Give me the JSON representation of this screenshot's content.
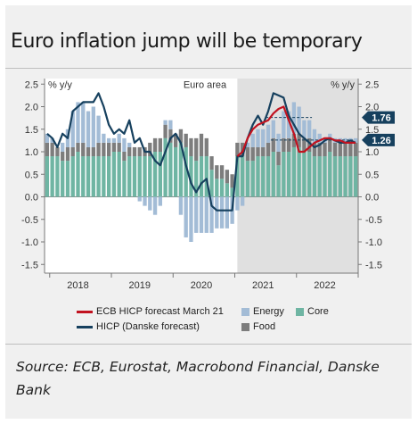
{
  "title": "Euro inflation jump will be temporary",
  "source": "Source: ECB, Eurostat, Macrobond Financial, Danske Bank",
  "chart_data": {
    "type": "bar",
    "region_label": "Euro area",
    "left_unit": "% y/y",
    "right_unit": "% y/y",
    "ylim": [
      -1.6,
      2.6
    ],
    "y_ticks": [
      "2.5",
      "2.0",
      "1.5",
      "1.0",
      "0.5",
      "0.0",
      "-0.5",
      "-1.0",
      "-1.5"
    ],
    "y_tick_values": [
      2.5,
      2.0,
      1.5,
      1.0,
      0.5,
      0.0,
      -0.5,
      -1.0,
      -1.5
    ],
    "year_labels": [
      "2018",
      "2019",
      "2020",
      "2021",
      "2022"
    ],
    "year_label_months": [
      6,
      18,
      30,
      42,
      54
    ],
    "forecast_start_month": 37.5,
    "months_start": "2017-12",
    "n_months": 61,
    "series": [
      {
        "name": "Core",
        "color": "#6fb5a3",
        "values": [
          0.9,
          0.9,
          0.9,
          0.8,
          0.8,
          0.9,
          1.0,
          0.9,
          0.9,
          0.9,
          0.9,
          0.9,
          0.9,
          1.0,
          1.0,
          0.8,
          0.9,
          0.9,
          0.9,
          0.9,
          0.9,
          1.0,
          1.0,
          1.3,
          1.2,
          1.1,
          1.2,
          1.1,
          0.9,
          0.8,
          0.9,
          0.9,
          0.6,
          0.4,
          0.4,
          0.3,
          0.2,
          0.9,
          0.9,
          0.8,
          0.8,
          0.9,
          0.9,
          0.9,
          1.0,
          0.7,
          1.0,
          1.0,
          1.1,
          1.1,
          1.0,
          1.0,
          0.9,
          0.9,
          0.9,
          1.0,
          0.9,
          0.9,
          0.9,
          0.9,
          0.9
        ]
      },
      {
        "name": "Food",
        "color": "#7d7d7d",
        "values": [
          0.3,
          0.3,
          0.2,
          0.2,
          0.3,
          0.2,
          0.2,
          0.3,
          0.2,
          0.2,
          0.3,
          0.3,
          0.3,
          0.2,
          0.2,
          0.2,
          0.2,
          0.2,
          0.2,
          0.2,
          0.3,
          0.3,
          0.3,
          0.3,
          0.3,
          0.3,
          0.3,
          0.3,
          0.4,
          0.5,
          0.5,
          0.4,
          0.3,
          0.3,
          0.3,
          0.3,
          0.3,
          0.3,
          0.3,
          0.3,
          0.3,
          0.2,
          0.2,
          0.3,
          0.3,
          0.3,
          0.3,
          0.3,
          0.3,
          0.3,
          0.3,
          0.3,
          0.3,
          0.3,
          0.3,
          0.3,
          0.3,
          0.3,
          0.3,
          0.3,
          0.3
        ]
      },
      {
        "name": "Energy",
        "color": "#a3bcd6",
        "values": [
          0.2,
          0.1,
          0.0,
          0.2,
          0.4,
          0.8,
          0.9,
          0.9,
          0.8,
          0.9,
          0.6,
          0.2,
          0.1,
          0.1,
          0.2,
          0.3,
          0.1,
          0.0,
          -0.1,
          -0.2,
          -0.3,
          -0.4,
          -0.2,
          0.1,
          0.2,
          0.0,
          -0.4,
          -0.9,
          -1.0,
          -0.8,
          -0.8,
          -0.8,
          -0.8,
          -0.7,
          -0.7,
          -0.7,
          -0.6,
          -0.3,
          -0.2,
          0.1,
          0.3,
          0.4,
          0.4,
          0.4,
          0.4,
          0.4,
          0.6,
          0.6,
          0.7,
          0.6,
          0.4,
          0.4,
          0.3,
          0.2,
          0.1,
          0.1,
          0.1,
          0.1,
          0.1,
          0.1,
          0.1
        ]
      },
      {
        "name": "HICP (Danske forecast)",
        "color": "#16405e",
        "values": [
          1.4,
          1.3,
          1.1,
          1.4,
          1.3,
          1.9,
          2.0,
          2.1,
          2.1,
          2.1,
          2.3,
          2.0,
          1.6,
          1.4,
          1.5,
          1.4,
          1.7,
          1.2,
          1.3,
          1.0,
          1.0,
          0.8,
          0.7,
          1.0,
          1.3,
          1.4,
          1.2,
          0.7,
          0.3,
          0.1,
          0.3,
          0.4,
          -0.2,
          -0.3,
          -0.3,
          -0.3,
          -0.3,
          0.9,
          0.9,
          1.3,
          1.6,
          1.8,
          1.6,
          1.9,
          2.3,
          2.25,
          2.2,
          1.8,
          1.6,
          1.4,
          1.3,
          1.2,
          1.1,
          1.15,
          1.25,
          1.3,
          1.25,
          1.2,
          1.2,
          1.25,
          1.2
        ]
      },
      {
        "name": "ECB HICP forecast March 21",
        "color": "#c1121f",
        "start_month": 37,
        "values": [
          0.9,
          1.0,
          1.3,
          1.5,
          1.6,
          1.65,
          1.7,
          1.85,
          1.95,
          2.0,
          1.7,
          1.4,
          1.0,
          1.0,
          1.1,
          1.2,
          1.25,
          1.3,
          1.3,
          1.25,
          1.25,
          1.2,
          1.2,
          1.2
        ]
      }
    ],
    "annotations": [
      {
        "label": "1.76",
        "value": 1.76,
        "span_months": [
          43,
          52
        ]
      },
      {
        "label": "1.26",
        "value": 1.26,
        "span_months": [
          44,
          60
        ]
      }
    ]
  },
  "legend": {
    "ecb": "ECB HICP forecast March 21",
    "hicp": "HICP (Danske forecast)",
    "energy": "Energy",
    "core": "Core",
    "food": "Food"
  }
}
